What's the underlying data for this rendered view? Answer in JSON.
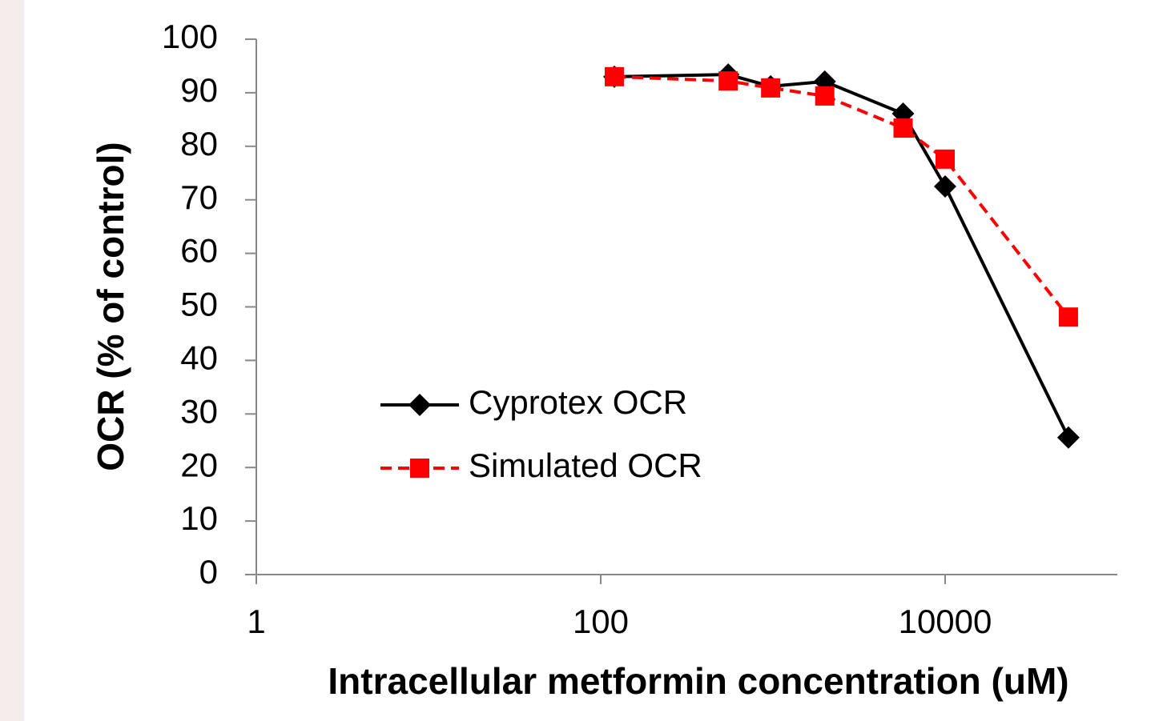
{
  "chart_data": {
    "type": "line",
    "x_label": "Intracellular metformin concentration (uM)",
    "y_label": "OCR (% of control)",
    "x": [
      120,
      550,
      970,
      2000,
      5700,
      10000,
      52000
    ],
    "series": [
      {
        "name": "Cyprotex OCR",
        "color": "#000000",
        "marker": "diamond",
        "linestyle": "solid",
        "values": [
          93.0,
          93.4,
          91.2,
          92.1,
          86.1,
          72.5,
          25.6
        ]
      },
      {
        "name": "Simulated OCR",
        "color": "#ff0000",
        "marker": "square",
        "linestyle": "dashed",
        "values": [
          93.0,
          92.2,
          90.9,
          89.4,
          83.4,
          77.6,
          48.1
        ]
      }
    ],
    "xscale": "log",
    "xlim": [
      1,
      100000
    ],
    "xticks": [
      1,
      100,
      10000
    ],
    "ylim": [
      0,
      100
    ],
    "yticks": [
      0,
      10,
      20,
      30,
      40,
      50,
      60,
      70,
      80,
      90,
      100
    ],
    "grid": false,
    "legend": "center-left"
  }
}
